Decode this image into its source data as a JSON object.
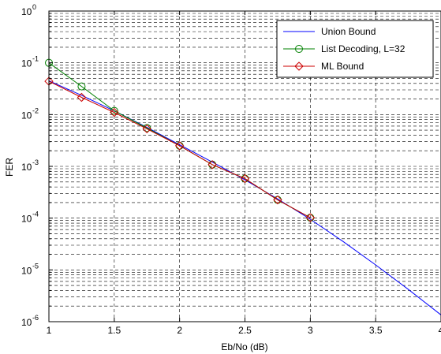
{
  "chart_data": {
    "type": "line",
    "xlabel": "Eb/No (dB)",
    "ylabel": "FER",
    "xlim": [
      1,
      4
    ],
    "ylim": [
      1e-06,
      1
    ],
    "yscale": "log",
    "grid": true,
    "legend_position": "top-right",
    "x_ticks": [
      {
        "value": 1,
        "label": "1"
      },
      {
        "value": 1.5,
        "label": "1.5"
      },
      {
        "value": 2,
        "label": "2"
      },
      {
        "value": 2.5,
        "label": "2.5"
      },
      {
        "value": 3,
        "label": "3"
      },
      {
        "value": 3.5,
        "label": "3.5"
      },
      {
        "value": 4,
        "label": "4"
      }
    ],
    "y_ticks": [
      {
        "value": 1e-06,
        "base": "10",
        "exp": "-6"
      },
      {
        "value": 1e-05,
        "base": "10",
        "exp": "-5"
      },
      {
        "value": 0.0001,
        "base": "10",
        "exp": "-4"
      },
      {
        "value": 0.001,
        "base": "10",
        "exp": "-3"
      },
      {
        "value": 0.01,
        "base": "10",
        "exp": "-2"
      },
      {
        "value": 0.1,
        "base": "10",
        "exp": "-1"
      },
      {
        "value": 1,
        "base": "10",
        "exp": "0"
      }
    ],
    "series": [
      {
        "name": "Union Bound",
        "color": "#0000ff",
        "marker": "none",
        "x": [
          1,
          1.25,
          1.5,
          1.75,
          2,
          2.25,
          2.5,
          2.75,
          3,
          3.25,
          3.5,
          3.75,
          4
        ],
        "y": [
          0.045,
          0.0235,
          0.0118,
          0.00565,
          0.00262,
          0.00121,
          0.00055,
          0.000235,
          9.5e-05,
          3.55e-05,
          1.25e-05,
          4.2e-06,
          1.35e-06
        ]
      },
      {
        "name": "List Decoding, L=32",
        "color": "#008000",
        "marker": "circle",
        "x": [
          1,
          1.25,
          1.5,
          1.75,
          2,
          2.25,
          2.5,
          2.75,
          3
        ],
        "y": [
          0.1,
          0.035,
          0.0118,
          0.0055,
          0.0025,
          0.00108,
          0.00058,
          0.000225,
          0.000102
        ]
      },
      {
        "name": "ML Bound",
        "color": "#cc0000",
        "marker": "diamond",
        "x": [
          1,
          1.25,
          1.5,
          1.75,
          2,
          2.25,
          2.5,
          2.75,
          3
        ],
        "y": [
          0.044,
          0.0215,
          0.011,
          0.0053,
          0.0025,
          0.00108,
          0.00058,
          0.000225,
          0.000102
        ]
      }
    ]
  }
}
